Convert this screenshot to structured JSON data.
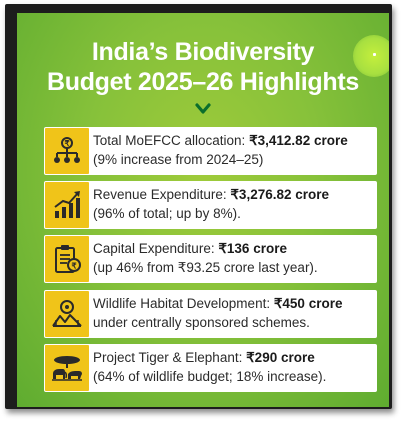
{
  "title": {
    "line1": "India’s Biodiversity",
    "line2": "Budget 2025–26 Highlights"
  },
  "highlights": [
    {
      "icon": "org-chart-icon",
      "label": "Total MoEFCC allocation: ",
      "value": "₹3,412.82 crore",
      "line2": "(9% increase from 2024–25)"
    },
    {
      "icon": "growth-chart-icon",
      "label": "Revenue Expenditure: ",
      "value": "₹3,276.82 crore",
      "line2": "(96% of total; up by 8%)."
    },
    {
      "icon": "clipboard-budget-icon",
      "label": "Capital Expenditure: ",
      "value": "₹136 crore",
      "line2": "(up 46% from ₹93.25 crore last year)."
    },
    {
      "icon": "habitat-landscape-icon",
      "label": "Wildlife Habitat Development: ",
      "value": "₹450 crore",
      "line2": "under centrally sponsored schemes."
    },
    {
      "icon": "tiger-elephant-icon",
      "label": "Project Tiger & Elephant: ",
      "value": "₹290 crore",
      "line2": "(64% of wildlife budget; 18% increase)."
    }
  ],
  "colors": {
    "background_green": "#86c13a",
    "icon_box_yellow": "#f0c419",
    "text_dark": "#2b2b2b",
    "title_white": "#ffffff"
  }
}
